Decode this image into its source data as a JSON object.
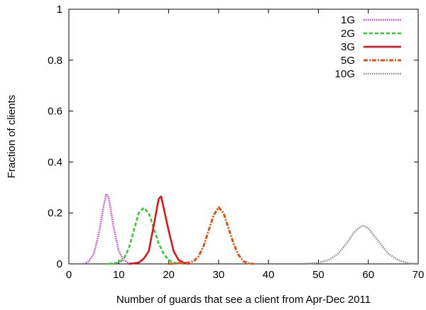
{
  "chart_data": {
    "type": "line",
    "title": "",
    "xlabel": "Number of guards that see a client from Apr-Dec 2011",
    "ylabel": "Fraction of clients",
    "xlim": [
      0,
      70
    ],
    "ylim": [
      0,
      1
    ],
    "xticks": [
      0,
      10,
      20,
      30,
      40,
      50,
      60,
      70
    ],
    "yticks": [
      0,
      0.2,
      0.4,
      0.6,
      0.8,
      1
    ],
    "ytick_labels": [
      "0",
      "0.2",
      "0.4",
      "0.6",
      "0.8",
      "1"
    ],
    "grid": false,
    "legend_position": "top-right",
    "series": [
      {
        "name": "1G",
        "color": "#cc33cc",
        "dash": "dotted",
        "x": [
          3,
          4,
          5,
          6,
          7,
          7.5,
          8,
          9,
          10,
          11,
          12,
          13
        ],
        "y": [
          0,
          0.01,
          0.04,
          0.12,
          0.23,
          0.275,
          0.26,
          0.14,
          0.05,
          0.015,
          0.003,
          0
        ]
      },
      {
        "name": "2G",
        "color": "#22cc22",
        "dash": "dashed",
        "x": [
          8,
          10,
          11,
          12,
          13,
          14,
          15,
          16,
          17,
          18,
          19,
          20,
          21,
          22
        ],
        "y": [
          0,
          0.005,
          0.02,
          0.06,
          0.13,
          0.2,
          0.22,
          0.2,
          0.14,
          0.08,
          0.04,
          0.015,
          0.005,
          0
        ]
      },
      {
        "name": "3G",
        "color": "#dd1111",
        "dash": "solid",
        "x": [
          12,
          14,
          15,
          16,
          17,
          18,
          18.5,
          19,
          20,
          21,
          22,
          23,
          24
        ],
        "y": [
          0,
          0.005,
          0.02,
          0.05,
          0.15,
          0.255,
          0.265,
          0.22,
          0.13,
          0.05,
          0.015,
          0.005,
          0
        ]
      },
      {
        "name": "5G",
        "color": "#dd5511",
        "dash": "dashdot",
        "x": [
          20,
          24,
          25,
          26,
          27,
          28,
          29,
          30,
          31,
          32,
          33,
          34,
          35,
          36,
          37
        ],
        "y": [
          0,
          0.005,
          0.01,
          0.03,
          0.07,
          0.13,
          0.19,
          0.222,
          0.2,
          0.14,
          0.08,
          0.035,
          0.01,
          0.003,
          0
        ]
      },
      {
        "name": "10G",
        "color": "#888888",
        "dash": "dotted",
        "x": [
          47,
          50,
          52,
          54,
          56,
          57,
          58,
          59,
          60,
          61,
          62,
          64,
          66,
          68,
          70
        ],
        "y": [
          0,
          0.005,
          0.015,
          0.04,
          0.09,
          0.12,
          0.14,
          0.15,
          0.14,
          0.115,
          0.09,
          0.04,
          0.015,
          0.003,
          0
        ]
      }
    ]
  }
}
